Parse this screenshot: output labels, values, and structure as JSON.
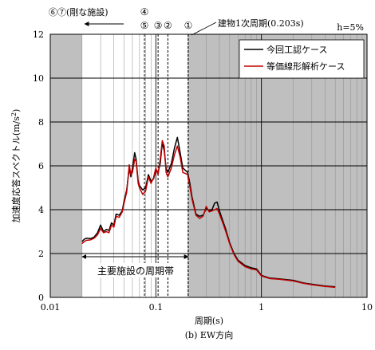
{
  "chart_data": {
    "type": "line",
    "xscale": "log",
    "xlim": [
      0.01,
      10
    ],
    "ylim": [
      0,
      12
    ],
    "xlabel": "周期(s)",
    "ylabel": "加速度応答スペクトル(m/s²)",
    "ylabel_main": "加速度応答スペクトル(m/s",
    "ylabel_sup": "2",
    "ylabel_close": ")",
    "subtitle": "(b) EW方向",
    "corner_label": "h=5%",
    "x_ticks": [
      0.01,
      0.1,
      1,
      10
    ],
    "x_tick_labels": [
      "0.01",
      "0.1",
      "1",
      "10"
    ],
    "y_ticks": [
      0,
      2,
      4,
      6,
      8,
      10,
      12
    ],
    "y_tick_labels": [
      "0",
      "2",
      "4",
      "6",
      "8",
      "10",
      "12"
    ],
    "grid": true,
    "legend_position": "top-right",
    "series": [
      {
        "name": "今回工認ケース",
        "color": "#000000",
        "x": [
          0.02,
          0.021,
          0.022,
          0.024,
          0.026,
          0.028,
          0.03,
          0.032,
          0.034,
          0.036,
          0.038,
          0.04,
          0.042,
          0.045,
          0.048,
          0.05,
          0.053,
          0.056,
          0.058,
          0.06,
          0.063,
          0.065,
          0.068,
          0.07,
          0.075,
          0.08,
          0.085,
          0.09,
          0.095,
          0.1,
          0.105,
          0.11,
          0.115,
          0.12,
          0.125,
          0.13,
          0.14,
          0.15,
          0.16,
          0.17,
          0.18,
          0.19,
          0.2,
          0.21,
          0.22,
          0.24,
          0.26,
          0.28,
          0.3,
          0.32,
          0.34,
          0.36,
          0.38,
          0.4,
          0.43,
          0.46,
          0.5,
          0.55,
          0.6,
          0.7,
          0.8,
          0.9,
          1.0,
          1.2,
          1.5,
          2.0,
          2.5,
          3.0,
          4.0,
          5.0
        ],
        "y": [
          2.55,
          2.65,
          2.7,
          2.68,
          2.75,
          2.95,
          3.3,
          3.0,
          3.1,
          3.05,
          3.4,
          3.3,
          3.8,
          3.75,
          3.95,
          4.4,
          4.9,
          5.9,
          5.5,
          5.9,
          6.6,
          6.3,
          5.3,
          5.1,
          4.9,
          5.0,
          5.6,
          5.3,
          5.4,
          5.8,
          5.7,
          6.1,
          7.05,
          6.7,
          5.9,
          5.7,
          6.1,
          6.8,
          7.3,
          6.6,
          5.9,
          5.8,
          5.7,
          5.2,
          4.6,
          3.8,
          3.7,
          3.75,
          4.05,
          3.95,
          4.0,
          4.3,
          4.35,
          3.95,
          3.5,
          3.1,
          2.5,
          2.0,
          1.7,
          1.45,
          1.35,
          1.3,
          1.0,
          0.88,
          0.84,
          0.78,
          0.66,
          0.6,
          0.52,
          0.48
        ]
      },
      {
        "name": "等価線形解析ケース",
        "color": "#c00000",
        "x": [
          0.02,
          0.021,
          0.022,
          0.024,
          0.026,
          0.028,
          0.03,
          0.032,
          0.034,
          0.036,
          0.038,
          0.04,
          0.042,
          0.045,
          0.048,
          0.05,
          0.053,
          0.056,
          0.058,
          0.06,
          0.063,
          0.065,
          0.068,
          0.07,
          0.075,
          0.08,
          0.085,
          0.09,
          0.095,
          0.1,
          0.105,
          0.11,
          0.115,
          0.12,
          0.125,
          0.13,
          0.14,
          0.15,
          0.16,
          0.17,
          0.18,
          0.19,
          0.2,
          0.21,
          0.22,
          0.24,
          0.26,
          0.28,
          0.3,
          0.32,
          0.34,
          0.36,
          0.38,
          0.4,
          0.43,
          0.46,
          0.5,
          0.55,
          0.6,
          0.7,
          0.8,
          0.9,
          1.0,
          1.2,
          1.5,
          2.0,
          2.5,
          3.0,
          4.0,
          5.0
        ],
        "y": [
          2.45,
          2.55,
          2.6,
          2.62,
          2.7,
          2.85,
          3.15,
          2.95,
          3.0,
          2.95,
          3.3,
          3.2,
          3.7,
          3.65,
          3.9,
          4.3,
          4.8,
          6.05,
          5.6,
          5.7,
          6.3,
          6.2,
          5.2,
          5.0,
          4.7,
          4.85,
          5.5,
          5.2,
          5.45,
          5.9,
          5.6,
          6.3,
          7.15,
          6.9,
          5.7,
          5.5,
          5.9,
          6.5,
          6.9,
          6.4,
          5.7,
          5.65,
          5.6,
          5.05,
          4.5,
          3.75,
          3.6,
          3.7,
          4.15,
          3.9,
          3.95,
          4.0,
          4.05,
          3.8,
          3.4,
          3.0,
          2.45,
          1.95,
          1.65,
          1.4,
          1.3,
          1.25,
          0.98,
          0.86,
          0.82,
          0.75,
          0.64,
          0.58,
          0.5,
          0.46
        ]
      }
    ],
    "shaded_regions": [
      {
        "x_from": 0.01,
        "x_to": 0.02,
        "color": "#bfbfbf"
      },
      {
        "x_from": 0.203,
        "x_to": 10,
        "color": "#bfbfbf"
      }
    ],
    "annotations": {
      "rigid_label": "⑥⑦(剛な施設)",
      "building_label": "建物1次周期(0.203s)",
      "main_range_label": "主要施設の周期帯",
      "main_range": [
        0.02,
        0.203
      ],
      "markers": [
        {
          "label": "①",
          "x": 0.203,
          "row": 2
        },
        {
          "label": "②",
          "x": 0.13,
          "row": 2
        },
        {
          "label": "③",
          "x": 0.105,
          "row": 2
        },
        {
          "label": "④",
          "x": 0.078,
          "row": 1
        },
        {
          "label": "⑤",
          "x": 0.078,
          "row": 2
        }
      ],
      "marker_lines": [
        0.078,
        0.105,
        0.13,
        0.203
      ]
    }
  }
}
